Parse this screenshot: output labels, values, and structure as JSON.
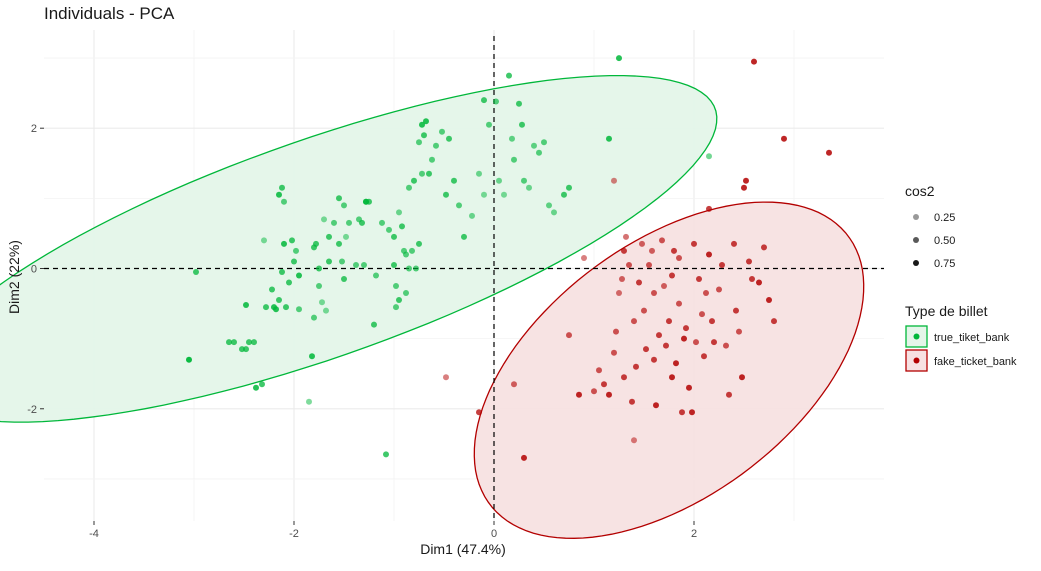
{
  "chart_data": {
    "type": "scatter",
    "title": "Individuals - PCA",
    "xlabel": "Dim1 (47.4%)",
    "ylabel": "Dim2 (22%)",
    "xlim": [
      -4.5,
      3.9
    ],
    "ylim": [
      -3.6,
      3.4
    ],
    "xticks": [
      -4,
      -2,
      0,
      2
    ],
    "yticks": [
      -2,
      0,
      2
    ],
    "grid": true,
    "reference_lines": {
      "x": 0,
      "y": 0,
      "style": "dashed"
    },
    "legends": [
      {
        "title": "cos2",
        "placement": "right",
        "items": [
          {
            "label": "0.25",
            "value": 0.25
          },
          {
            "label": "0.50",
            "value": 0.5
          },
          {
            "label": "0.75",
            "value": 0.75
          }
        ]
      },
      {
        "title": "Type de billet",
        "placement": "right",
        "items": [
          {
            "label": "true_tiket_bank",
            "color": "#00b73a",
            "fill": "#e4f5e9"
          },
          {
            "label": "fake_ticket_bank",
            "color": "#b30000",
            "fill": "#f7e1e2"
          }
        ]
      }
    ],
    "series": [
      {
        "name": "true_tiket_bank",
        "color": "#00b73a",
        "fill": "#e4f5e9",
        "ellipse": {
          "center": [
            -1.75,
            0.28
          ],
          "semi_axes": [
            4.45,
            1.46
          ],
          "angle_deg": 28.3
        },
        "points": [
          [
            -3.05,
            -1.3,
            0.8
          ],
          [
            -2.98,
            -0.05,
            0.6
          ],
          [
            -2.65,
            -1.05,
            0.6
          ],
          [
            -2.6,
            -1.05,
            0.6
          ],
          [
            -2.52,
            -1.15,
            0.6
          ],
          [
            -2.48,
            -1.15,
            0.6
          ],
          [
            -2.45,
            -1.05,
            0.6
          ],
          [
            -2.4,
            -1.05,
            0.6
          ],
          [
            -2.38,
            -1.7,
            0.7
          ],
          [
            -2.32,
            -1.65,
            0.6
          ],
          [
            -2.3,
            0.4,
            0.35
          ],
          [
            -2.48,
            -0.52,
            0.7
          ],
          [
            -2.28,
            -0.55,
            0.6
          ],
          [
            -2.22,
            -0.3,
            0.6
          ],
          [
            -2.2,
            -0.55,
            0.7
          ],
          [
            -2.18,
            -0.58,
            0.7
          ],
          [
            -2.15,
            -0.45,
            0.6
          ],
          [
            -2.12,
            -0.05,
            0.6
          ],
          [
            -2.1,
            0.35,
            0.7
          ],
          [
            -2.08,
            -0.55,
            0.6
          ],
          [
            -2.05,
            -0.2,
            0.6
          ],
          [
            -2.02,
            0.4,
            0.6
          ],
          [
            -2.0,
            0.1,
            0.6
          ],
          [
            -1.98,
            0.25,
            0.5
          ],
          [
            -1.95,
            -0.58,
            0.5
          ],
          [
            -2.15,
            1.05,
            0.7
          ],
          [
            -2.12,
            1.15,
            0.6
          ],
          [
            -2.1,
            0.95,
            0.5
          ],
          [
            -1.95,
            -0.1,
            0.7
          ],
          [
            -1.85,
            -1.9,
            0.35
          ],
          [
            -1.8,
            0.3,
            0.6
          ],
          [
            -1.75,
            -0.25,
            0.5
          ],
          [
            -1.72,
            -0.48,
            0.35
          ],
          [
            -1.68,
            -0.6,
            0.35
          ],
          [
            -1.65,
            0.45,
            0.6
          ],
          [
            -1.6,
            0.65,
            0.5
          ],
          [
            -1.55,
            0.35,
            0.6
          ],
          [
            -1.52,
            0.1,
            0.5
          ],
          [
            -1.5,
            -0.15,
            0.6
          ],
          [
            -1.48,
            0.45,
            0.35
          ],
          [
            -1.45,
            0.65,
            0.5
          ],
          [
            -1.38,
            0.05,
            0.5
          ],
          [
            -1.32,
            0.65,
            0.6
          ],
          [
            -1.28,
            0.95,
            0.7
          ],
          [
            -1.25,
            0.95,
            0.6
          ],
          [
            -1.2,
            -0.8,
            0.6
          ],
          [
            -1.18,
            -0.1,
            0.5
          ],
          [
            -1.12,
            0.65,
            0.5
          ],
          [
            -1.05,
            0.55,
            0.5
          ],
          [
            -1.0,
            0.05,
            0.6
          ],
          [
            -0.98,
            -0.55,
            0.5
          ],
          [
            -0.95,
            -0.45,
            0.6
          ],
          [
            -0.92,
            0.6,
            0.6
          ],
          [
            -0.88,
            0.2,
            0.5
          ],
          [
            -0.85,
            0.0,
            0.5
          ],
          [
            -0.82,
            0.25,
            0.5
          ],
          [
            -0.78,
            0.0,
            0.5
          ],
          [
            -0.75,
            0.35,
            0.6
          ],
          [
            -1.82,
            -1.25,
            0.7
          ],
          [
            -1.8,
            -0.7,
            0.5
          ],
          [
            -1.78,
            0.35,
            0.6
          ],
          [
            -1.75,
            0.0,
            0.6
          ],
          [
            -1.7,
            0.7,
            0.35
          ],
          [
            -1.65,
            0.1,
            0.6
          ],
          [
            -1.55,
            1.0,
            0.6
          ],
          [
            -1.5,
            0.9,
            0.5
          ],
          [
            -1.3,
            0.05,
            0.5
          ],
          [
            -1.08,
            -2.65,
            0.6
          ],
          [
            -1.0,
            0.45,
            0.6
          ],
          [
            -0.98,
            -0.25,
            0.5
          ],
          [
            -0.95,
            0.8,
            0.4
          ],
          [
            -0.9,
            0.25,
            0.5
          ],
          [
            -0.88,
            -0.35,
            0.5
          ],
          [
            -0.85,
            1.15,
            0.5
          ],
          [
            -0.8,
            1.25,
            0.6
          ],
          [
            -0.75,
            1.8,
            0.5
          ],
          [
            -0.72,
            1.35,
            0.5
          ],
          [
            -0.65,
            1.35,
            0.6
          ],
          [
            -0.62,
            1.55,
            0.5
          ],
          [
            -0.58,
            1.75,
            0.5
          ],
          [
            -0.52,
            1.95,
            0.5
          ],
          [
            -0.48,
            1.05,
            0.6
          ],
          [
            -0.45,
            1.85,
            0.6
          ],
          [
            -0.4,
            1.25,
            0.6
          ],
          [
            -0.35,
            0.9,
            0.5
          ],
          [
            -0.3,
            0.45,
            0.6
          ],
          [
            -0.22,
            0.75,
            0.4
          ],
          [
            -0.15,
            1.35,
            0.4
          ],
          [
            -0.1,
            1.05,
            0.35
          ],
          [
            -0.05,
            2.05,
            0.5
          ],
          [
            0.05,
            1.25,
            0.4
          ],
          [
            0.1,
            1.05,
            0.35
          ],
          [
            0.15,
            2.75,
            0.6
          ],
          [
            0.2,
            1.55,
            0.5
          ],
          [
            0.25,
            2.35,
            0.6
          ],
          [
            0.3,
            1.25,
            0.5
          ],
          [
            0.35,
            1.15,
            0.4
          ],
          [
            0.45,
            1.65,
            0.5
          ],
          [
            0.5,
            1.8,
            0.5
          ],
          [
            0.55,
            0.9,
            0.45
          ],
          [
            0.6,
            0.8,
            0.4
          ],
          [
            -0.1,
            2.4,
            0.6
          ],
          [
            0.02,
            2.38,
            0.5
          ],
          [
            0.18,
            1.85,
            0.45
          ],
          [
            0.28,
            2.05,
            0.6
          ],
          [
            0.4,
            1.75,
            0.45
          ],
          [
            0.7,
            1.05,
            0.6
          ],
          [
            0.75,
            1.15,
            0.6
          ],
          [
            1.15,
            1.85,
            0.7
          ],
          [
            1.25,
            3.0,
            0.7
          ],
          [
            2.15,
            1.6,
            0.4
          ],
          [
            -1.28,
            0.95,
            0.6
          ],
          [
            -1.35,
            0.7,
            0.5
          ],
          [
            -0.7,
            1.9,
            0.6
          ],
          [
            -0.72,
            2.05,
            0.7
          ],
          [
            -0.68,
            2.1,
            0.7
          ]
        ]
      },
      {
        "name": "fake_ticket_bank",
        "color": "#b30000",
        "fill": "#f7e1e2",
        "ellipse": {
          "center": [
            1.75,
            -1.45
          ],
          "semi_axes": [
            2.7,
            1.5
          ],
          "angle_deg": 56.4
        },
        "points": [
          [
            -0.48,
            -1.55,
            0.35
          ],
          [
            -0.15,
            -2.05,
            0.6
          ],
          [
            0.2,
            -1.65,
            0.45
          ],
          [
            0.3,
            -2.7,
            0.7
          ],
          [
            0.75,
            -0.95,
            0.5
          ],
          [
            0.85,
            -1.8,
            0.7
          ],
          [
            0.9,
            0.15,
            0.35
          ],
          [
            1.0,
            -1.75,
            0.5
          ],
          [
            1.05,
            -1.45,
            0.5
          ],
          [
            1.1,
            -1.65,
            0.6
          ],
          [
            1.15,
            -1.8,
            0.7
          ],
          [
            1.2,
            -1.2,
            0.5
          ],
          [
            1.2,
            1.25,
            0.35
          ],
          [
            1.22,
            -0.9,
            0.5
          ],
          [
            1.25,
            -0.35,
            0.4
          ],
          [
            1.28,
            -0.15,
            0.45
          ],
          [
            1.3,
            -1.55,
            0.6
          ],
          [
            1.3,
            0.25,
            0.6
          ],
          [
            1.32,
            0.45,
            0.4
          ],
          [
            1.35,
            0.05,
            0.5
          ],
          [
            1.38,
            -1.9,
            0.6
          ],
          [
            1.4,
            -2.45,
            0.35
          ],
          [
            1.4,
            -0.75,
            0.5
          ],
          [
            1.42,
            -1.4,
            0.6
          ],
          [
            1.45,
            -0.2,
            0.6
          ],
          [
            1.48,
            0.35,
            0.45
          ],
          [
            1.5,
            -0.6,
            0.5
          ],
          [
            1.52,
            -1.15,
            0.6
          ],
          [
            1.55,
            0.05,
            0.5
          ],
          [
            1.58,
            0.25,
            0.45
          ],
          [
            1.6,
            -1.3,
            0.6
          ],
          [
            1.6,
            -0.35,
            0.5
          ],
          [
            1.62,
            -1.95,
            0.7
          ],
          [
            1.65,
            -0.95,
            0.6
          ],
          [
            1.68,
            0.4,
            0.5
          ],
          [
            1.7,
            -0.25,
            0.45
          ],
          [
            1.72,
            -1.1,
            0.6
          ],
          [
            1.75,
            -0.75,
            0.6
          ],
          [
            1.78,
            -1.55,
            0.7
          ],
          [
            1.8,
            0.25,
            0.6
          ],
          [
            1.82,
            -1.35,
            0.7
          ],
          [
            1.85,
            -0.5,
            0.5
          ],
          [
            1.88,
            -2.05,
            0.6
          ],
          [
            1.9,
            -1.0,
            0.7
          ],
          [
            1.92,
            -0.85,
            0.6
          ],
          [
            1.95,
            -1.7,
            0.7
          ],
          [
            1.98,
            -2.05,
            0.7
          ],
          [
            2.0,
            0.35,
            0.6
          ],
          [
            2.02,
            -1.05,
            0.5
          ],
          [
            2.05,
            -0.15,
            0.6
          ],
          [
            2.08,
            -0.65,
            0.5
          ],
          [
            2.1,
            -1.25,
            0.6
          ],
          [
            2.12,
            -0.35,
            0.5
          ],
          [
            2.15,
            0.2,
            0.7
          ],
          [
            2.18,
            -0.75,
            0.6
          ],
          [
            2.2,
            -1.05,
            0.6
          ],
          [
            2.25,
            -0.3,
            0.5
          ],
          [
            2.28,
            0.05,
            0.6
          ],
          [
            2.32,
            -1.1,
            0.5
          ],
          [
            2.35,
            -1.8,
            0.6
          ],
          [
            2.4,
            0.35,
            0.6
          ],
          [
            2.42,
            -0.6,
            0.6
          ],
          [
            2.45,
            -0.9,
            0.5
          ],
          [
            2.48,
            -1.55,
            0.7
          ],
          [
            2.5,
            1.15,
            0.7
          ],
          [
            2.52,
            1.25,
            0.7
          ],
          [
            2.55,
            0.1,
            0.6
          ],
          [
            2.58,
            -0.15,
            0.6
          ],
          [
            2.6,
            2.95,
            0.7
          ],
          [
            2.65,
            -0.2,
            0.7
          ],
          [
            2.7,
            0.3,
            0.6
          ],
          [
            2.75,
            -0.45,
            0.7
          ],
          [
            2.8,
            -0.75,
            0.6
          ],
          [
            2.9,
            1.85,
            0.7
          ],
          [
            3.35,
            1.65,
            0.7
          ],
          [
            1.78,
            -0.1,
            0.6
          ],
          [
            2.15,
            0.85,
            0.6
          ],
          [
            1.85,
            0.15,
            0.5
          ]
        ]
      }
    ]
  }
}
